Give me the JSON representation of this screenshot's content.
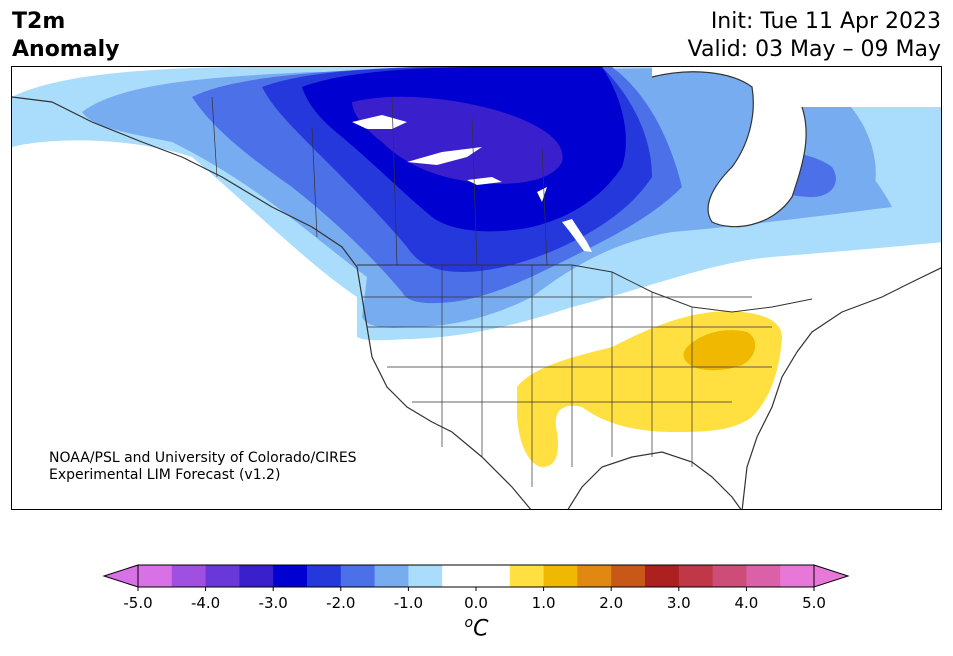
{
  "header": {
    "variable_line1": "T2m",
    "variable_line2": "Anomaly",
    "init": "Init: Tue 11 Apr 2023",
    "valid": "Valid: 03 May – 09 May"
  },
  "credit": {
    "line1": "NOAA/PSL and University of Colorado/CIRES",
    "line2": "Experimental LIM Forecast (v1.2)"
  },
  "colorbar": {
    "unit_prefix": "o",
    "unit": "C",
    "min": -5.0,
    "max": 5.0,
    "step": 0.5,
    "tick_labels": [
      "-5.0",
      "-4.0",
      "-3.0",
      "-2.0",
      "-1.0",
      "0.0",
      "1.0",
      "2.0",
      "3.0",
      "4.0",
      "5.0"
    ],
    "colors": [
      "#d870e6",
      "#a050e0",
      "#6a38d8",
      "#3a20cc",
      "#0000d0",
      "#2438dc",
      "#4c70e8",
      "#78acf0",
      "#aadcfc",
      "#ffffff",
      "#ffffff",
      "#ffe040",
      "#f0b800",
      "#e08810",
      "#c85818",
      "#ac2020",
      "#c03848",
      "#cc4e78",
      "#da60a8",
      "#e878d8"
    ],
    "under_color": "#d870e6",
    "over_color": "#e878d8"
  },
  "map": {
    "region": "North America",
    "anomaly_colors": {
      "minus_1_0": "#aadcfc",
      "minus_1_5": "#78acf0",
      "minus_2_0": "#4c70e8",
      "minus_2_5": "#2438dc",
      "minus_3_0": "#0000d0",
      "minus_3_5": "#3a20cc",
      "plus_1_0": "#ffe040",
      "plus_1_5": "#f0b800"
    }
  }
}
